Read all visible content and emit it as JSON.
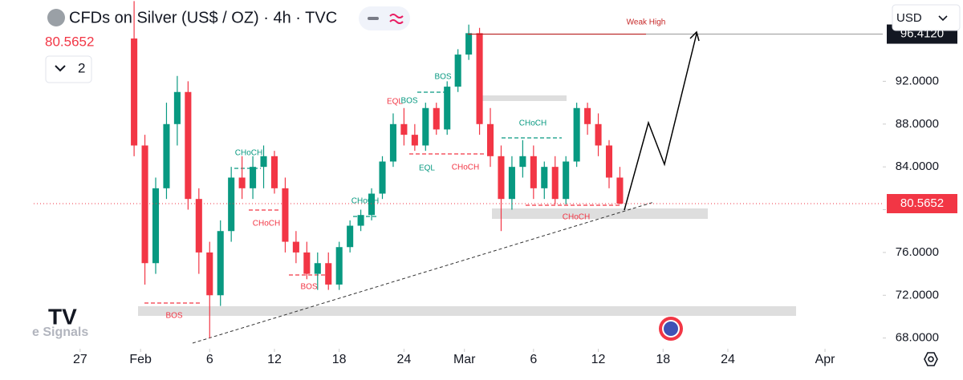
{
  "header": {
    "title": "CFDs on Silver (US$ / OZ) · 4h · TVC",
    "indicator_count": "2",
    "currency": "USD",
    "watermark": "e Signals"
  },
  "chart_data": {
    "type": "candlestick",
    "x": [
      5,
      6,
      7,
      8,
      9,
      10,
      11,
      12,
      13,
      14,
      15,
      16,
      17,
      18,
      19,
      20,
      21,
      22,
      23,
      24,
      25,
      26,
      27,
      28,
      29,
      30,
      31,
      32,
      33,
      34,
      35,
      36,
      37,
      38,
      39,
      40,
      41,
      42,
      43,
      44,
      45,
      46,
      47,
      48,
      49,
      50
    ],
    "open": [
      96,
      86,
      75,
      82,
      88,
      91,
      81,
      76,
      72,
      78,
      83,
      82,
      84,
      85,
      82,
      77,
      76,
      74,
      75,
      73,
      76.5,
      78.5,
      79.5,
      81.5,
      84.5,
      88,
      87,
      86,
      89.5,
      87.5,
      91.5,
      94.5,
      96.5,
      88,
      85,
      81,
      84,
      85,
      82,
      84,
      81,
      84.5,
      89.5,
      88,
      86,
      83
    ],
    "high": [
      99.5,
      87,
      83,
      90,
      92.5,
      92,
      82,
      77,
      79,
      84,
      85,
      85,
      86,
      85.5,
      83,
      78,
      77,
      76,
      76,
      77,
      79,
      80,
      82,
      85,
      89,
      89.5,
      88,
      90,
      90,
      92,
      95,
      97.3,
      97,
      89.5,
      86,
      85,
      86.5,
      86,
      84.5,
      85,
      85,
      90,
      90,
      89,
      86.5,
      84
    ],
    "low": [
      85,
      73,
      74,
      81,
      86,
      80,
      74,
      68,
      71,
      77,
      81,
      81,
      82,
      81.5,
      76,
      75,
      73.5,
      72.5,
      72.5,
      72.5,
      76,
      78,
      79,
      81,
      84,
      86,
      85.5,
      85.5,
      87,
      87,
      91,
      94,
      87,
      84,
      78,
      80,
      83,
      81,
      81,
      80.5,
      80.5,
      84,
      87,
      85,
      82,
      80.5
    ],
    "close": [
      86,
      75,
      82,
      88,
      91,
      81,
      76,
      72,
      78,
      83,
      82,
      84,
      85,
      82,
      77,
      76,
      74,
      75,
      73,
      76.5,
      78.5,
      79.5,
      81.5,
      84.5,
      88,
      87,
      86,
      89.5,
      87.5,
      91.5,
      94.5,
      96.5,
      88,
      85,
      81,
      84,
      85,
      82,
      84,
      81,
      84.5,
      89.5,
      88,
      86,
      83,
      80.5652
    ],
    "up_color": "#089981",
    "down_color": "#f23645",
    "last_price": 80.5652,
    "weak_high_price": {
      "value": 96.412,
      "label": "96.4120"
    },
    "weak_high_label": "Weak High",
    "annotations": [
      "BOS",
      "BOS",
      "EQL",
      "CHoCH",
      "CHoCH",
      "BOS",
      "BOS",
      "CHoCH",
      "EQL",
      "CHoCH",
      "CHoCH",
      "CHoCH"
    ],
    "xlim": [
      -4.3,
      74.35
    ],
    "ylim": [
      67,
      99.6
    ],
    "xticks": [
      {
        "value": 0,
        "label": "27"
      },
      {
        "value": 5.6,
        "label": "Feb"
      },
      {
        "value": 12,
        "label": "6"
      },
      {
        "value": 18,
        "label": "12"
      },
      {
        "value": 24,
        "label": "18"
      },
      {
        "value": 30,
        "label": "24"
      },
      {
        "value": 35.6,
        "label": "Mar"
      },
      {
        "value": 42,
        "label": "6"
      },
      {
        "value": 48,
        "label": "12"
      },
      {
        "value": 54,
        "label": "18"
      },
      {
        "value": 60,
        "label": "24"
      },
      {
        "value": 69,
        "label": "Apr"
      }
    ],
    "yticks": [
      {
        "value": 68,
        "label": "68.0000"
      },
      {
        "value": 72,
        "label": "72.0000"
      },
      {
        "value": 76,
        "label": "76.0000"
      },
      {
        "value": 80,
        "label": "80.0000"
      },
      {
        "value": 84,
        "label": "84.0000"
      },
      {
        "value": 88,
        "label": "88.0000"
      },
      {
        "value": 92,
        "label": "92.0000"
      }
    ]
  }
}
